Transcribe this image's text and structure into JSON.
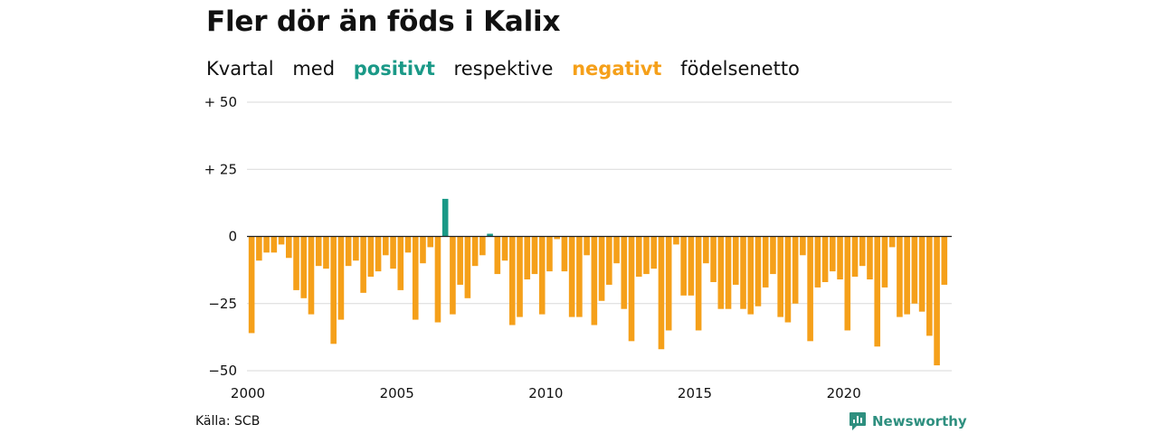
{
  "header": {
    "title": "Fler dör än föds i Kalix",
    "subtitle": {
      "part1": "Kvartal",
      "part2": "med",
      "positive_word": "positivt",
      "part3": "respektive",
      "negative_word": "negativt",
      "part4": "födelsenetto"
    }
  },
  "footer": {
    "source": "Källa: SCB",
    "brand": "Newsworthy"
  },
  "colors": {
    "positive": "#1a9987",
    "negative": "#f5a01a",
    "grid": "#d9d9d9",
    "baseline": "#222222"
  },
  "chart_data": {
    "type": "bar",
    "title": "Fler dör än föds i Kalix",
    "xlabel": "",
    "ylabel": "",
    "ylim": [
      -50,
      50
    ],
    "yticks": [
      {
        "value": 50,
        "label": "+ 50"
      },
      {
        "value": 25,
        "label": "+ 25"
      },
      {
        "value": 0,
        "label": "0"
      },
      {
        "value": -25,
        "label": "−25"
      },
      {
        "value": -50,
        "label": "−50"
      }
    ],
    "xticks": [
      "2000",
      "2005",
      "2010",
      "2015",
      "2020"
    ],
    "start_year": 2000,
    "grid": true,
    "legend": "none",
    "values": [
      -36,
      -9,
      -6,
      -6,
      -3,
      -8,
      -20,
      -23,
      -29,
      -11,
      -12,
      -40,
      -31,
      -11,
      -9,
      -21,
      -15,
      -13,
      -7,
      -12,
      -20,
      -6,
      -31,
      -10,
      -4,
      -32,
      14,
      -29,
      -18,
      -23,
      -11,
      -7,
      1,
      -14,
      -9,
      -33,
      -30,
      -16,
      -14,
      -29,
      -13,
      -1,
      -13,
      -30,
      -30,
      -7,
      -33,
      -24,
      -18,
      -10,
      -27,
      -39,
      -15,
      -14,
      -12,
      -42,
      -35,
      -3,
      -22,
      -22,
      -35,
      -10,
      -17,
      -27,
      -27,
      -18,
      -27,
      -29,
      -26,
      -19,
      -14,
      -30,
      -32,
      -25,
      -7,
      -39,
      -19,
      -17,
      -13,
      -16,
      -35,
      -15,
      -11,
      -16,
      -41,
      -19,
      -4,
      -30,
      -29,
      -25,
      -28,
      -37,
      -48,
      -18
    ]
  }
}
